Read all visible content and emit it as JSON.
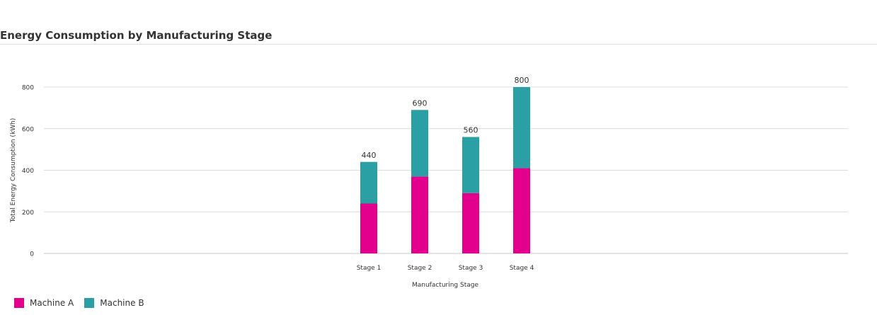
{
  "chart_data": {
    "type": "bar",
    "stacked": true,
    "title": "Energy Consumption by Manufacturing Stage",
    "xlabel": "Manufacturing Stage",
    "ylabel": "Total Energy Consumption (kWh)",
    "categories": [
      "Stage 1",
      "Stage 2",
      "Stage 3",
      "Stage 4"
    ],
    "series": [
      {
        "name": "Machine A",
        "color": "#e3008c",
        "values": [
          240,
          370,
          290,
          410
        ]
      },
      {
        "name": "Machine B",
        "color": "#2aa0a4",
        "values": [
          200,
          320,
          270,
          390
        ]
      }
    ],
    "totals": [
      440,
      690,
      560,
      800
    ],
    "yticks": [
      0,
      200,
      400,
      600,
      800
    ],
    "ylim": [
      0,
      800
    ],
    "grid": true,
    "legend": "bottom-left"
  }
}
